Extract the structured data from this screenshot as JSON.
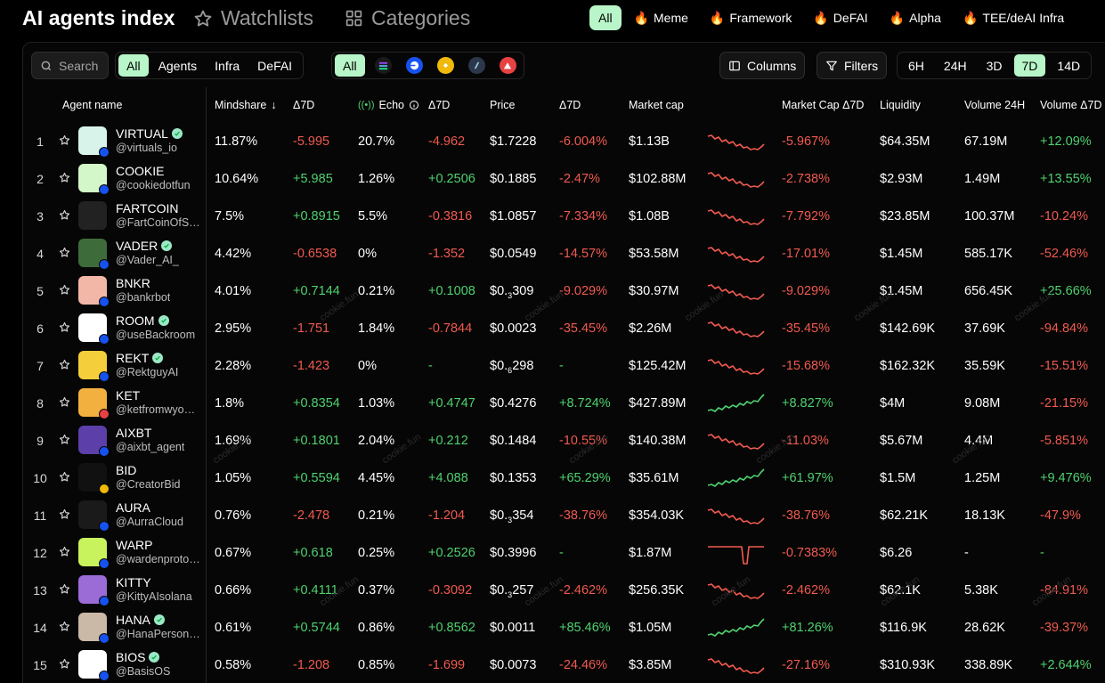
{
  "header": {
    "title": "AI agents index",
    "watchlists": "Watchlists",
    "categories": "Categories",
    "category_pills": [
      {
        "label": "All",
        "active": true,
        "fire": false
      },
      {
        "label": "Meme",
        "active": false,
        "fire": true
      },
      {
        "label": "Framework",
        "active": false,
        "fire": true
      },
      {
        "label": "DeFAI",
        "active": false,
        "fire": true
      },
      {
        "label": "Alpha",
        "active": false,
        "fire": true
      },
      {
        "label": "TEE/deAI Infra",
        "active": false,
        "fire": true
      }
    ]
  },
  "filters": {
    "search_placeholder": "Search",
    "type_tabs": [
      {
        "label": "All",
        "active": true
      },
      {
        "label": "Agents",
        "active": false
      },
      {
        "label": "Infra",
        "active": false
      },
      {
        "label": "DeFAI",
        "active": false
      }
    ],
    "chain_all_label": "All",
    "chain_icons": [
      "solana-icon",
      "base-icon",
      "bnb-icon",
      "arbitrum-icon",
      "avalanche-icon"
    ],
    "columns_label": "Columns",
    "filters_label": "Filters",
    "timeframes": [
      {
        "label": "6H",
        "active": false
      },
      {
        "label": "24H",
        "active": false
      },
      {
        "label": "3D",
        "active": false
      },
      {
        "label": "7D",
        "active": true
      },
      {
        "label": "14D",
        "active": false
      }
    ]
  },
  "table": {
    "columns": {
      "agent_name": "Agent name",
      "mindshare": "Mindshare",
      "mindshare_delta": "Δ7D",
      "echo": "Echo",
      "echo_delta": "Δ7D",
      "price": "Price",
      "price_delta": "Δ7D",
      "market_cap": "Market cap",
      "market_cap_delta": "Market Cap Δ7D",
      "liquidity": "Liquidity",
      "volume_24h": "Volume 24H",
      "volume_delta": "Volume Δ7D"
    },
    "watermark_text": "cookie.fun",
    "rows": [
      {
        "rank": "1",
        "name": "VIRTUAL",
        "verified": true,
        "handle": "@virtuals_io",
        "mindshare": "11.87%",
        "mindshare_delta": "-5.995",
        "echo": "20.7%",
        "echo_delta": "-4.962",
        "price": "$1.7228",
        "price_delta": "-6.004%",
        "market_cap": "$1.13B",
        "mc_delta": "-5.967%",
        "liquidity": "$64.35M",
        "volume": "67.19M",
        "volume_delta": "+12.09%",
        "avatar_color": "#d8f3ea",
        "badge": "base",
        "spark_trend": "down"
      },
      {
        "rank": "2",
        "name": "COOKIE",
        "verified": false,
        "handle": "@cookiedotfun",
        "mindshare": "10.64%",
        "mindshare_delta": "+5.985",
        "echo": "1.26%",
        "echo_delta": "+0.2506",
        "price": "$0.1885",
        "price_delta": "-2.47%",
        "market_cap": "$102.88M",
        "mc_delta": "-2.738%",
        "liquidity": "$2.93M",
        "volume": "1.49M",
        "volume_delta": "+13.55%",
        "avatar_color": "#d3f7c8",
        "badge": "base",
        "spark_trend": "down"
      },
      {
        "rank": "3",
        "name": "FARTCOIN",
        "verified": false,
        "handle": "@FartCoinOfSOL",
        "mindshare": "7.5%",
        "mindshare_delta": "+0.8915",
        "echo": "5.5%",
        "echo_delta": "-0.3816",
        "price": "$1.0857",
        "price_delta": "-7.334%",
        "market_cap": "$1.08B",
        "mc_delta": "-7.792%",
        "liquidity": "$23.85M",
        "volume": "100.37M",
        "volume_delta": "-10.24%",
        "avatar_color": "#222222",
        "badge": "none",
        "spark_trend": "down"
      },
      {
        "rank": "4",
        "name": "VADER",
        "verified": true,
        "handle": "@Vader_AI_",
        "mindshare": "4.42%",
        "mindshare_delta": "-0.6538",
        "echo": "0%",
        "echo_delta": "-1.352",
        "price": "$0.0549",
        "price_delta": "-14.57%",
        "market_cap": "$53.58M",
        "mc_delta": "-17.01%",
        "liquidity": "$1.45M",
        "volume": "585.17K",
        "volume_delta": "-52.46%",
        "avatar_color": "#3e6b3a",
        "badge": "base",
        "spark_trend": "down"
      },
      {
        "rank": "5",
        "name": "BNKR",
        "verified": false,
        "handle": "@bankrbot",
        "mindshare": "4.01%",
        "mindshare_delta": "+0.7144",
        "echo": "0.21%",
        "echo_delta": "+0.1008",
        "price_prefix": "$0.",
        "price_sub": "3",
        "price_suffix": "309",
        "price": "$0.₃309",
        "price_delta": "-9.029%",
        "market_cap": "$30.97M",
        "mc_delta": "-9.029%",
        "liquidity": "$1.45M",
        "volume": "656.45K",
        "volume_delta": "+25.66%",
        "avatar_color": "#f3b7a8",
        "badge": "base",
        "spark_trend": "down"
      },
      {
        "rank": "6",
        "name": "ROOM",
        "verified": true,
        "handle": "@useBackroom",
        "mindshare": "2.95%",
        "mindshare_delta": "-1.751",
        "echo": "1.84%",
        "echo_delta": "-0.7844",
        "price": "$0.0023",
        "price_delta": "-35.45%",
        "market_cap": "$2.26M",
        "mc_delta": "-35.45%",
        "liquidity": "$142.69K",
        "volume": "37.69K",
        "volume_delta": "-94.84%",
        "avatar_color": "#ffffff",
        "badge": "base",
        "spark_trend": "down"
      },
      {
        "rank": "7",
        "name": "REKT",
        "verified": true,
        "handle": "@RektguyAI",
        "mindshare": "2.28%",
        "mindshare_delta": "-1.423",
        "echo": "0%",
        "echo_delta": "-",
        "price_prefix": "$0.",
        "price_sub": "6",
        "price_suffix": "298",
        "price": "$0.₆298",
        "price_delta": "-",
        "market_cap": "$125.42M",
        "mc_delta": "-15.68%",
        "liquidity": "$162.32K",
        "volume": "35.59K",
        "volume_delta": "-15.51%",
        "avatar_color": "#f4cf3b",
        "badge": "base",
        "spark_trend": "down"
      },
      {
        "rank": "8",
        "name": "KET",
        "verified": false,
        "handle": "@ketfromwyoming",
        "mindshare": "1.8%",
        "mindshare_delta": "+0.8354",
        "echo": "1.03%",
        "echo_delta": "+0.4747",
        "price": "$0.4276",
        "price_delta": "+8.724%",
        "market_cap": "$427.89M",
        "mc_delta": "+8.827%",
        "liquidity": "$4M",
        "volume": "9.08M",
        "volume_delta": "-21.15%",
        "avatar_color": "#f2b13f",
        "badge": "avax",
        "spark_trend": "up"
      },
      {
        "rank": "9",
        "name": "AIXBT",
        "verified": false,
        "handle": "@aixbt_agent",
        "mindshare": "1.69%",
        "mindshare_delta": "+0.1801",
        "echo": "2.04%",
        "echo_delta": "+0.212",
        "price": "$0.1484",
        "price_delta": "-10.55%",
        "market_cap": "$140.38M",
        "mc_delta": "-11.03%",
        "liquidity": "$5.67M",
        "volume": "4.4M",
        "volume_delta": "-5.851%",
        "avatar_color": "#5c3fa8",
        "badge": "base",
        "spark_trend": "down"
      },
      {
        "rank": "10",
        "name": "BID",
        "verified": false,
        "handle": "@CreatorBid",
        "mindshare": "1.05%",
        "mindshare_delta": "+0.5594",
        "echo": "4.45%",
        "echo_delta": "+4.088",
        "price": "$0.1353",
        "price_delta": "+65.29%",
        "market_cap": "$35.61M",
        "mc_delta": "+61.97%",
        "liquidity": "$1.5M",
        "volume": "1.25M",
        "volume_delta": "+9.476%",
        "avatar_color": "#111111",
        "badge": "bnb",
        "spark_trend": "up"
      },
      {
        "rank": "11",
        "name": "AURA",
        "verified": false,
        "handle": "@AurraCloud",
        "mindshare": "0.76%",
        "mindshare_delta": "-2.478",
        "echo": "0.21%",
        "echo_delta": "-1.204",
        "price_prefix": "$0.",
        "price_sub": "3",
        "price_suffix": "354",
        "price": "$0.₃354",
        "price_delta": "-38.76%",
        "market_cap": "$354.03K",
        "mc_delta": "-38.76%",
        "liquidity": "$62.21K",
        "volume": "18.13K",
        "volume_delta": "-47.9%",
        "avatar_color": "#1a1a1a",
        "badge": "base",
        "spark_trend": "down"
      },
      {
        "rank": "12",
        "name": "WARP",
        "verified": false,
        "handle": "@wardenprotocol",
        "mindshare": "0.67%",
        "mindshare_delta": "+0.618",
        "echo": "0.25%",
        "echo_delta": "+0.2526",
        "price": "$0.3996",
        "price_delta": "-",
        "market_cap": "$1.87M",
        "mc_delta": "-0.7383%",
        "liquidity": "$6.26",
        "volume": "-",
        "volume_delta": "-",
        "avatar_color": "#c8f35c",
        "badge": "base",
        "spark_trend": "dip"
      },
      {
        "rank": "13",
        "name": "KITTY",
        "verified": false,
        "handle": "@KittyAIsolana",
        "mindshare": "0.66%",
        "mindshare_delta": "+0.4111",
        "echo": "0.37%",
        "echo_delta": "-0.3092",
        "price_prefix": "$0.",
        "price_sub": "3",
        "price_suffix": "257",
        "price": "$0.₃257",
        "price_delta": "-2.462%",
        "market_cap": "$256.35K",
        "mc_delta": "-2.462%",
        "liquidity": "$62.1K",
        "volume": "5.38K",
        "volume_delta": "-84.91%",
        "avatar_color": "#9b6bd6",
        "badge": "base",
        "spark_trend": "down"
      },
      {
        "rank": "14",
        "name": "HANA",
        "verified": true,
        "handle": "@HanaPersona_",
        "mindshare": "0.61%",
        "mindshare_delta": "+0.5744",
        "echo": "0.86%",
        "echo_delta": "+0.8562",
        "price": "$0.0011",
        "price_delta": "+85.46%",
        "market_cap": "$1.05M",
        "mc_delta": "+81.26%",
        "liquidity": "$116.9K",
        "volume": "28.62K",
        "volume_delta": "-39.37%",
        "avatar_color": "#c9b9a6",
        "badge": "base",
        "spark_trend": "up"
      },
      {
        "rank": "15",
        "name": "BIOS",
        "verified": true,
        "handle": "@BasisOS",
        "mindshare": "0.58%",
        "mindshare_delta": "-1.208",
        "echo": "0.85%",
        "echo_delta": "-1.699",
        "price": "$0.0073",
        "price_delta": "-24.46%",
        "market_cap": "$3.85M",
        "mc_delta": "-27.16%",
        "liquidity": "$310.93K",
        "volume": "338.89K",
        "volume_delta": "+2.644%",
        "avatar_color": "#ffffff",
        "badge": "base",
        "spark_trend": "down"
      }
    ]
  },
  "colors": {
    "accent": "#b8f5c8",
    "positive": "#4fd16f",
    "negative": "#f05a4f",
    "background": "#000000"
  }
}
